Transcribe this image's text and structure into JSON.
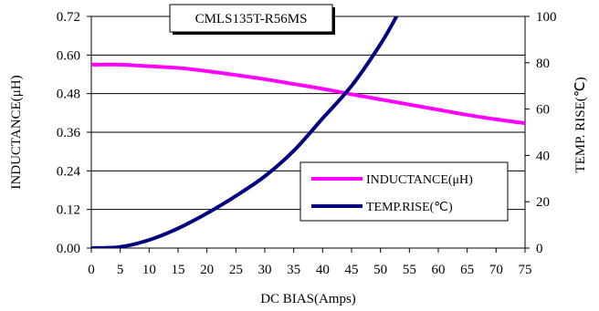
{
  "chart_data": {
    "type": "line",
    "title": "CMLS135T-R56MS",
    "xlabel": "DC BIAS(Amps)",
    "ylabel_left": "INDUCTANCE(μH)",
    "ylabel_right": "TEMP. RISE(℃)",
    "x_ticks": [
      "0",
      "5",
      "10",
      "15",
      "20",
      "25",
      "30",
      "35",
      "40",
      "45",
      "50",
      "55",
      "60",
      "65",
      "70",
      "75"
    ],
    "y_left_ticks": [
      "0.00",
      "0.12",
      "0.24",
      "0.36",
      "0.48",
      "0.60",
      "0.72"
    ],
    "y_right_ticks": [
      "0",
      "20",
      "40",
      "60",
      "80",
      "100"
    ],
    "xlim": [
      0,
      75
    ],
    "ylim_left": [
      0,
      0.72
    ],
    "ylim_right": [
      0,
      100
    ],
    "grid": "horizontal",
    "legend_position": "lower-right",
    "series": [
      {
        "name": "INDUCTANCE(μH)",
        "axis": "left",
        "color": "#ff00ff",
        "x": [
          0,
          5,
          10,
          15,
          20,
          25,
          30,
          35,
          40,
          45,
          50,
          55,
          60,
          65,
          70,
          75
        ],
        "values": [
          0.57,
          0.57,
          0.565,
          0.56,
          0.55,
          0.538,
          0.525,
          0.51,
          0.495,
          0.478,
          0.462,
          0.446,
          0.43,
          0.414,
          0.4,
          0.388
        ]
      },
      {
        "name": "TEMP.RISE(℃)",
        "axis": "right",
        "color": "#000080",
        "x": [
          0,
          5,
          10,
          15,
          20,
          25,
          30,
          35,
          40,
          45,
          50,
          53
        ],
        "values": [
          0,
          0.5,
          3.5,
          8.5,
          15,
          22.5,
          31,
          42,
          56,
          70,
          88,
          101
        ]
      }
    ]
  }
}
